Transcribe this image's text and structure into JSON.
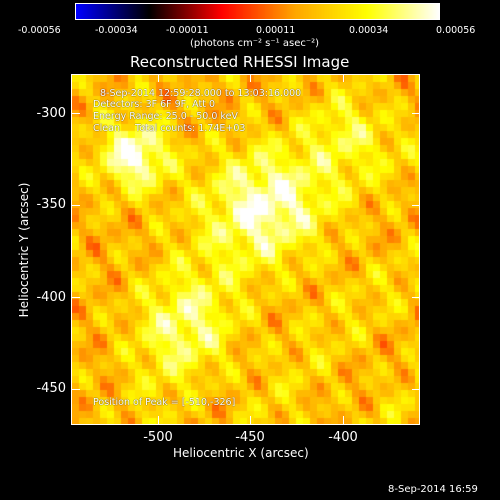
{
  "colorbar": {
    "ticks": [
      "-0.00056",
      "-0.00034",
      "-0.00011",
      "0.00011",
      "0.00034",
      "0.00056"
    ],
    "units": "(photons cm⁻² s⁻¹ asec⁻²)",
    "range": [
      -0.00056,
      0.00056
    ],
    "colormap": [
      "#0000ff",
      "#000000",
      "#ff0000",
      "#ffa500",
      "#ffff00",
      "#ffffff"
    ]
  },
  "image": {
    "title": "Reconstructed RHESSI Image",
    "time_range": "8-Sep-2014 12:59:28.000 to 13:03:16.000",
    "detectors": "Detectors: 3F 6F 9F, Att 0",
    "energy_range": "Energy Range: 25.0 - 50.0 keV",
    "clean_counts": "Clean     Total counts: 1.74E+03",
    "peak_position": "Position of Peak = [-510,-326]"
  },
  "axes": {
    "x_label": "Heliocentric X (arcsec)",
    "y_label": "Heliocentric Y (arcsec)",
    "x_ticks": [
      "-500",
      "-450",
      "-400"
    ],
    "y_ticks": [
      "-300",
      "-350",
      "-400",
      "-450"
    ],
    "xlim": [
      -548,
      -372
    ],
    "ylim": [
      -470,
      -284
    ]
  },
  "footer": {
    "timestamp": "8-Sep-2014 16:59"
  }
}
